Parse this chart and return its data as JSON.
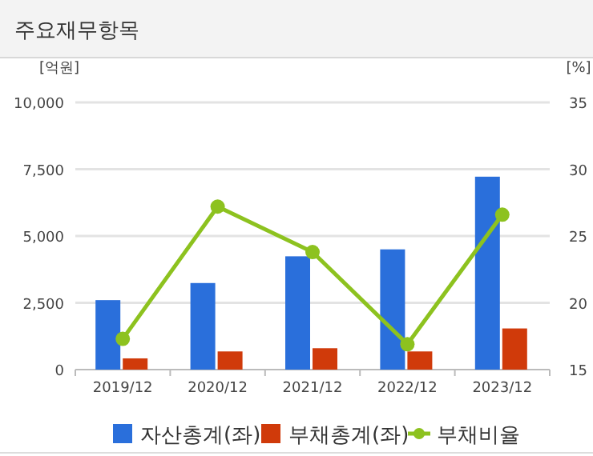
{
  "chart_data": {
    "type": "bar",
    "title": "주요재무항목",
    "ylabel": "[억원]",
    "y2label": "[%]",
    "categories": [
      "2019/12",
      "2020/12",
      "2021/12",
      "2022/12",
      "2023/12"
    ],
    "series": [
      {
        "name": "자산총계(좌)",
        "color": "#2a6fdb",
        "values": [
          2600,
          3240,
          4240,
          4500,
          7220
        ]
      },
      {
        "name": "부채총계(좌)",
        "color": "#d03a0a",
        "values": [
          420,
          680,
          800,
          680,
          1540
        ]
      },
      {
        "name": "부채비율",
        "type": "line",
        "axis": "y2",
        "color": "#8dc21f",
        "marker": "circle",
        "values": [
          17.3,
          27.2,
          23.8,
          16.9,
          26.6
        ]
      }
    ],
    "ylim": [
      0,
      10000
    ],
    "yticks": [
      {
        "value": 0,
        "label": "0"
      },
      {
        "value": 2500,
        "label": "2,500"
      },
      {
        "value": 5000,
        "label": "5,000"
      },
      {
        "value": 7500,
        "label": "7,500"
      },
      {
        "value": 10000,
        "label": "10,000"
      }
    ],
    "y2lim": [
      15,
      35
    ],
    "y2ticks": [
      15,
      20,
      25,
      30,
      35
    ],
    "grid": "y",
    "legend": "bottom"
  }
}
